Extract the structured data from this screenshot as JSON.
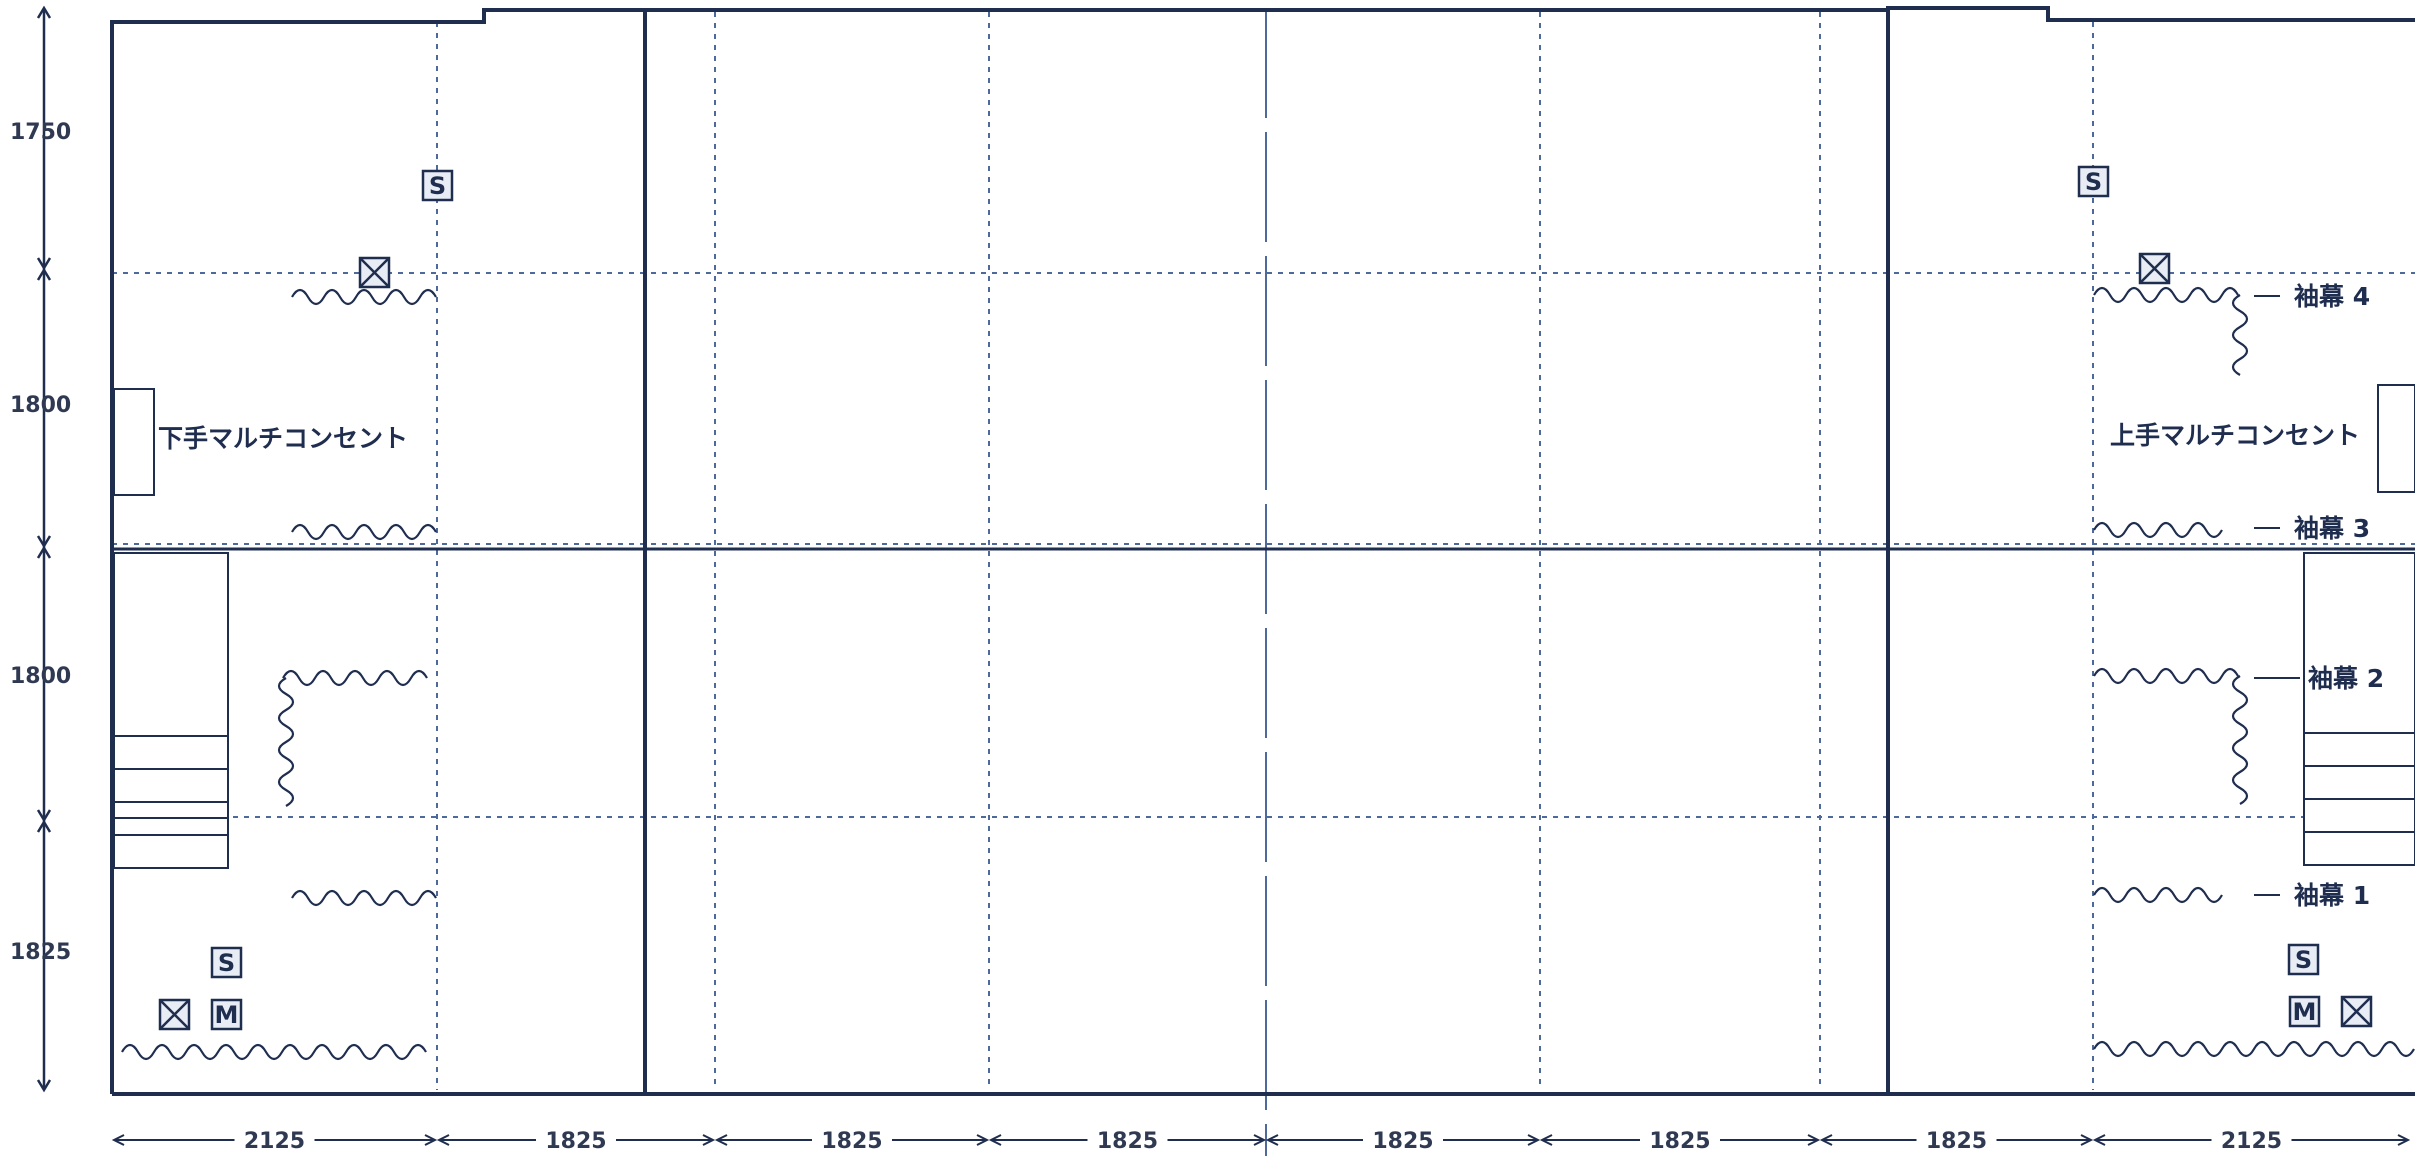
{
  "dimensions": {
    "left": [
      "1750",
      "1800",
      "1800",
      "1825"
    ],
    "bottom": [
      "2125",
      "1825",
      "1825",
      "1825",
      "1825",
      "1825",
      "1825",
      "2125"
    ]
  },
  "labels": {
    "shimote_outlet": "下手マルチコンセント",
    "kamite_outlet": "上手マルチコンセント",
    "sode_4": "袖幕 4",
    "sode_3": "袖幕 3",
    "sode_2": "袖幕 2",
    "sode_1": "袖幕 1"
  },
  "markers": {
    "speaker": "S",
    "monitor": "M"
  },
  "colors": {
    "ink": "#1f2d4f",
    "grid": "#4e6a9c",
    "paper": "#ffffff"
  }
}
